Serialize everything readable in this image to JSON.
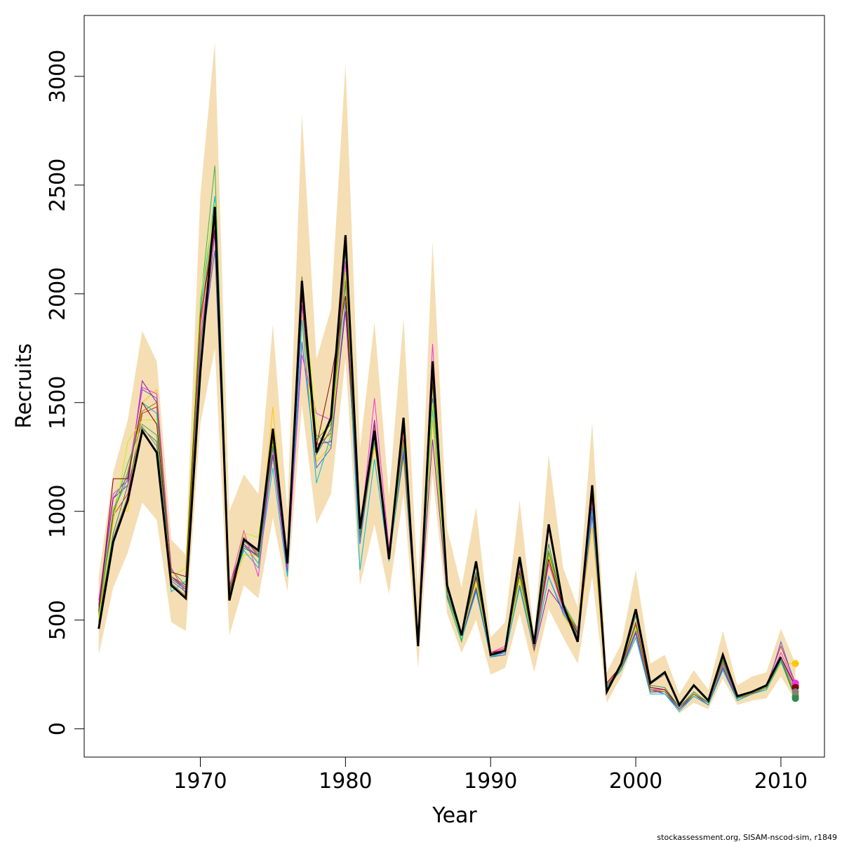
{
  "chart_data": {
    "type": "line",
    "title": "",
    "xlabel": "Year",
    "ylabel": "Recruits",
    "xlim": [
      1962,
      2013
    ],
    "ylim": [
      -130,
      3280
    ],
    "x_ticks": [
      1970,
      1980,
      1990,
      2000,
      2010
    ],
    "y_ticks": [
      0,
      500,
      1000,
      1500,
      2000,
      2500,
      3000
    ],
    "grid": false,
    "legend": "none",
    "footer": "stockassessment.org, SISAM-nscod-sim, r1849",
    "band_color": "#f5deb3",
    "years": [
      1963,
      1964,
      1965,
      1966,
      1967,
      1968,
      1969,
      1970,
      1971,
      1972,
      1973,
      1974,
      1975,
      1976,
      1977,
      1978,
      1979,
      1980,
      1981,
      1982,
      1983,
      1984,
      1985,
      1986,
      1987,
      1988,
      1989,
      1990,
      1991,
      1992,
      1993,
      1994,
      1995,
      1996,
      1997,
      1998,
      1999,
      2000,
      2001,
      2002,
      2003,
      2004,
      2005,
      2006,
      2007,
      2008,
      2009,
      2010,
      2011
    ],
    "band_upper": [
      700,
      1180,
      1420,
      1830,
      1690,
      870,
      800,
      2450,
      3160,
      1000,
      1170,
      1080,
      1860,
      1000,
      2830,
      1700,
      1930,
      3060,
      1290,
      1870,
      1070,
      1890,
      650,
      2240,
      920,
      650,
      1020,
      420,
      490,
      1050,
      430,
      1260,
      740,
      560,
      1410,
      260,
      390,
      730,
      300,
      340,
      160,
      270,
      180,
      450,
      200,
      240,
      260,
      460,
      300
    ],
    "band_lower": [
      340,
      650,
      810,
      1040,
      960,
      490,
      450,
      1400,
      1750,
      430,
      660,
      600,
      970,
      630,
      1490,
      940,
      1080,
      1700,
      660,
      940,
      620,
      1080,
      280,
      1170,
      530,
      350,
      500,
      250,
      280,
      530,
      260,
      550,
      420,
      300,
      700,
      120,
      240,
      410,
      160,
      170,
      70,
      120,
      90,
      230,
      110,
      130,
      140,
      240,
      130
    ],
    "main_series": {
      "name": "",
      "color": "#000000",
      "values": [
        460,
        860,
        1050,
        1370,
        1270,
        660,
        600,
        1640,
        2400,
        590,
        870,
        820,
        1380,
        760,
        2060,
        1270,
        1430,
        2270,
        920,
        1370,
        780,
        1430,
        380,
        1690,
        660,
        430,
        770,
        340,
        360,
        790,
        390,
        940,
        570,
        400,
        1120,
        170,
        300,
        550,
        210,
        260,
        110,
        200,
        130,
        340,
        150,
        170,
        200,
        330,
        null
      ]
    },
    "simulation_series": [
      {
        "name": "",
        "color": "#e6194b",
        "values": [
          480,
          980,
          1080,
          1450,
          1480,
          700,
          640,
          1850,
          2350,
          610,
          880,
          790,
          1340,
          780,
          1990,
          1300,
          1360,
          2150,
          940,
          1400,
          820,
          1300,
          410,
          1600,
          640,
          440,
          700,
          350,
          370,
          720,
          380,
          760,
          560,
          440,
          1060,
          190,
          280,
          490,
          190,
          180,
          100,
          160,
          120,
          310,
          140,
          170,
          200,
          380,
          210
        ]
      },
      {
        "name": "",
        "color": "#3cb44b",
        "values": [
          520,
          1000,
          1220,
          1400,
          1350,
          730,
          660,
          1950,
          2590,
          640,
          850,
          760,
          1250,
          790,
          1900,
          1350,
          1300,
          2080,
          880,
          1320,
          800,
          1250,
          430,
          1580,
          600,
          400,
          690,
          330,
          360,
          700,
          370,
          820,
          580,
          460,
          1010,
          200,
          270,
          470,
          180,
          170,
          90,
          150,
          110,
          290,
          130,
          160,
          190,
          310,
          140
        ]
      },
      {
        "name": "",
        "color": "#ffc800",
        "values": [
          500,
          1020,
          1000,
          1500,
          1560,
          650,
          620,
          1780,
          2200,
          600,
          800,
          800,
          1480,
          730,
          1900,
          1230,
          1300,
          2050,
          860,
          1300,
          820,
          1240,
          400,
          1420,
          620,
          420,
          660,
          340,
          360,
          680,
          350,
          800,
          520,
          420,
          930,
          180,
          270,
          470,
          170,
          170,
          100,
          150,
          110,
          280,
          140,
          160,
          180,
          300,
          300
        ]
      },
      {
        "name": "",
        "color": "#4363d8",
        "values": [
          560,
          1060,
          1160,
          1560,
          1520,
          690,
          640,
          1700,
          2200,
          620,
          830,
          800,
          1320,
          720,
          1780,
          1200,
          1290,
          1960,
          850,
          1340,
          780,
          1260,
          400,
          1520,
          610,
          420,
          650,
          330,
          340,
          660,
          370,
          700,
          530,
          430,
          1020,
          190,
          280,
          450,
          180,
          160,
          90,
          150,
          110,
          280,
          130,
          160,
          180,
          400,
          200
        ]
      },
      {
        "name": "",
        "color": "#911eb4",
        "values": [
          570,
          1060,
          1120,
          1600,
          1500,
          700,
          650,
          1660,
          2280,
          660,
          850,
          790,
          1260,
          720,
          1950,
          1310,
          1320,
          1920,
          900,
          1420,
          800,
          1280,
          410,
          1330,
          620,
          420,
          640,
          340,
          350,
          650,
          360,
          640,
          550,
          420,
          980,
          200,
          270,
          440,
          170,
          170,
          90,
          160,
          110,
          280,
          140,
          160,
          190,
          330,
          200
        ]
      },
      {
        "name": "",
        "color": "#00bcd4",
        "values": [
          550,
          1000,
          1150,
          1500,
          1450,
          630,
          680,
          1920,
          2450,
          620,
          820,
          740,
          1200,
          700,
          1880,
          1130,
          1350,
          2050,
          730,
          1240,
          770,
          1300,
          400,
          1470,
          620,
          410,
          630,
          330,
          350,
          650,
          370,
          700,
          540,
          430,
          1000,
          190,
          270,
          420,
          160,
          160,
          80,
          150,
          110,
          270,
          130,
          160,
          180,
          310,
          150
        ]
      },
      {
        "name": "",
        "color": "#f032e6",
        "values": [
          590,
          1080,
          1140,
          1570,
          1540,
          740,
          620,
          1800,
          2300,
          650,
          910,
          700,
          1290,
          740,
          1720,
          1450,
          1420,
          2150,
          890,
          1520,
          830,
          1340,
          420,
          1770,
          660,
          430,
          690,
          350,
          380,
          750,
          370,
          760,
          550,
          460,
          1050,
          200,
          290,
          470,
          180,
          180,
          100,
          160,
          120,
          300,
          140,
          170,
          200,
          350,
          210
        ]
      },
      {
        "name": "",
        "color": "#bcf60c",
        "values": [
          510,
          950,
          1320,
          1420,
          1420,
          700,
          740,
          1980,
          2420,
          600,
          900,
          880,
          1310,
          770,
          2050,
          1400,
          1330,
          2100,
          900,
          1350,
          780,
          1320,
          430,
          1500,
          620,
          420,
          680,
          340,
          360,
          690,
          370,
          800,
          560,
          450,
          1110,
          200,
          280,
          470,
          180,
          170,
          100,
          160,
          120,
          310,
          140,
          170,
          190,
          320,
          160
        ]
      },
      {
        "name": "",
        "color": "#800000",
        "values": [
          540,
          1150,
          1150,
          1500,
          1400,
          720,
          700,
          1900,
          2300,
          630,
          870,
          820,
          1360,
          790,
          2000,
          1300,
          1610,
          1990,
          920,
          1370,
          800,
          1380,
          420,
          1600,
          650,
          440,
          700,
          350,
          360,
          720,
          380,
          780,
          560,
          440,
          1060,
          210,
          290,
          480,
          190,
          180,
          100,
          160,
          120,
          320,
          140,
          170,
          200,
          330,
          190
        ]
      },
      {
        "name": "",
        "color": "#808000",
        "values": [
          530,
          990,
          1180,
          1460,
          1500,
          700,
          660,
          1880,
          2380,
          620,
          880,
          800,
          1330,
          780,
          2080,
          1330,
          1400,
          2060,
          900,
          1380,
          790,
          1330,
          410,
          1620,
          640,
          430,
          710,
          340,
          360,
          730,
          370,
          810,
          570,
          450,
          1090,
          200,
          280,
          480,
          180,
          170,
          100,
          160,
          120,
          310,
          140,
          160,
          190,
          320,
          150
        ]
      },
      {
        "name": "",
        "color": "#2e8b57",
        "values": [
          490,
          900,
          1120,
          1380,
          1320,
          680,
          630,
          1750,
          2340,
          600,
          840,
          790,
          1300,
          760,
          2020,
          1260,
          1380,
          2200,
          880,
          1350,
          790,
          1400,
          390,
          1650,
          620,
          430,
          720,
          340,
          360,
          760,
          380,
          850,
          560,
          430,
          1120,
          180,
          290,
          520,
          200,
          190,
          100,
          170,
          120,
          320,
          140,
          170,
          200,
          320,
          140
        ]
      },
      {
        "name": "",
        "color": "#808080",
        "values": [
          475,
          880,
          1070,
          1390,
          1300,
          670,
          610,
          1700,
          2380,
          600,
          860,
          810,
          1370,
          760,
          2050,
          1280,
          1420,
          2240,
          910,
          1360,
          785,
          1410,
          385,
          1680,
          650,
          430,
          760,
          340,
          360,
          780,
          385,
          920,
          570,
          405,
          1110,
          175,
          300,
          540,
          205,
          250,
          105,
          195,
          125,
          335,
          145,
          165,
          195,
          325,
          170
        ]
      }
    ]
  }
}
